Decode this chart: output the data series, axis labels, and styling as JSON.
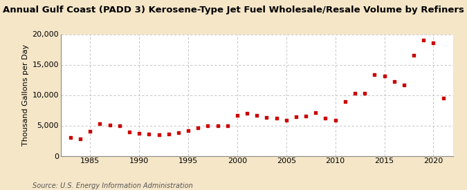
{
  "title": "Annual Gulf Coast (PADD 3) Kerosene-Type Jet Fuel Wholesale/Resale Volume by Refiners",
  "ylabel": "Thousand Gallons per Day",
  "source": "Source: U.S. Energy Information Administration",
  "background_color": "#f5e6c8",
  "plot_bg_color": "#ffffff",
  "marker_color": "#cc0000",
  "years": [
    1983,
    1984,
    1985,
    1986,
    1987,
    1988,
    1989,
    1990,
    1991,
    1992,
    1993,
    1994,
    1995,
    1996,
    1997,
    1998,
    1999,
    2000,
    2001,
    2002,
    2003,
    2004,
    2005,
    2006,
    2007,
    2008,
    2009,
    2010,
    2011,
    2012,
    2013,
    2014,
    2015,
    2016,
    2017,
    2018,
    2019,
    2020,
    2021
  ],
  "values": [
    3000,
    2800,
    4000,
    5300,
    5100,
    5000,
    3900,
    3700,
    3600,
    3500,
    3600,
    3800,
    4200,
    4600,
    5000,
    4900,
    5000,
    6600,
    7000,
    6700,
    6300,
    6200,
    5900,
    6400,
    6500,
    7100,
    6200,
    5900,
    8900,
    10300,
    10300,
    13400,
    13100,
    12200,
    11600,
    16500,
    19000,
    18600,
    9500
  ],
  "xlim": [
    1982,
    2022
  ],
  "ylim": [
    0,
    20000
  ],
  "yticks": [
    0,
    5000,
    10000,
    15000,
    20000
  ],
  "xticks": [
    1985,
    1990,
    1995,
    2000,
    2005,
    2010,
    2015,
    2020
  ],
  "grid_color": "#bbbbbb",
  "title_fontsize": 9.5,
  "axis_fontsize": 8,
  "tick_fontsize": 8,
  "source_fontsize": 7
}
